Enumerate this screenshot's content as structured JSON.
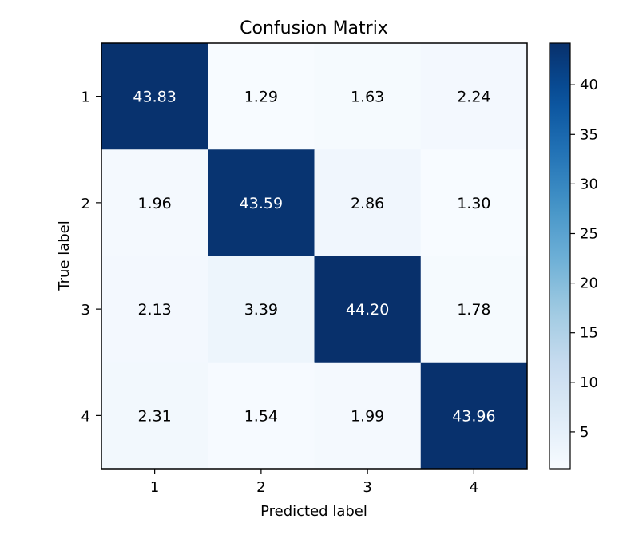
{
  "chart_data": {
    "type": "heatmap",
    "title": "Confusion Matrix",
    "xlabel": "Predicted label",
    "ylabel": "True label",
    "x_categories": [
      "1",
      "2",
      "3",
      "4"
    ],
    "y_categories": [
      "1",
      "2",
      "3",
      "4"
    ],
    "values": [
      [
        43.83,
        1.29,
        1.63,
        2.24
      ],
      [
        1.96,
        43.59,
        2.86,
        1.3
      ],
      [
        2.13,
        3.39,
        44.2,
        1.78
      ],
      [
        2.31,
        1.54,
        1.99,
        43.96
      ]
    ],
    "cell_labels": [
      [
        "43.83",
        "1.29",
        "1.63",
        "2.24"
      ],
      [
        "1.96",
        "43.59",
        "2.86",
        "1.30"
      ],
      [
        "2.13",
        "3.39",
        "44.20",
        "1.78"
      ],
      [
        "2.31",
        "1.54",
        "1.99",
        "43.96"
      ]
    ],
    "colormap": "Blues",
    "colorbar": {
      "vmin": 1.29,
      "vmax": 44.2,
      "ticks": [
        5,
        10,
        15,
        20,
        25,
        30,
        35,
        40
      ],
      "tick_labels": [
        "5",
        "10",
        "15",
        "20",
        "25",
        "30",
        "35",
        "40"
      ]
    }
  }
}
